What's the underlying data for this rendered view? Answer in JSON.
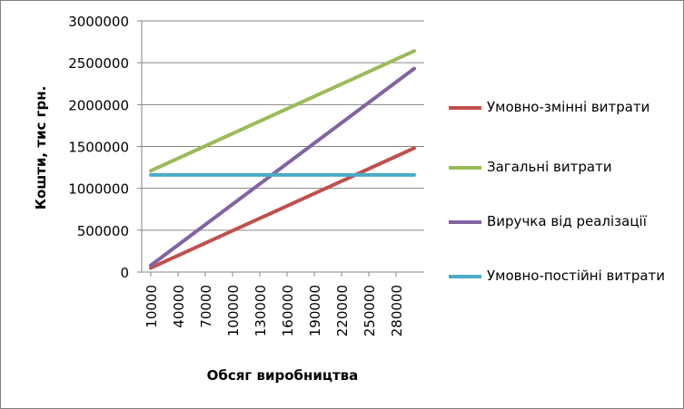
{
  "chart_data": {
    "type": "line",
    "title": "",
    "xlabel": "Обсяг виробництва",
    "ylabel": "Кошти, тис грн.",
    "ylim": [
      0,
      3000000
    ],
    "yticks": [
      "0",
      "500000",
      "1000000",
      "1500000",
      "2000000",
      "2500000",
      "3000000"
    ],
    "xlim": [
      10000,
      300000
    ],
    "xticks": [
      "10000",
      "40000",
      "70000",
      "100000",
      "130000",
      "160000",
      "190000",
      "220000",
      "250000",
      "280000"
    ],
    "grid": true,
    "legend_position": "right",
    "x": [
      10000,
      300000
    ],
    "series": [
      {
        "name": "Умовно-змінні витрати",
        "color": "#c0504d",
        "values": [
          50000,
          1480000
        ]
      },
      {
        "name": "Загальні витрати",
        "color": "#9bbb59",
        "values": [
          1210000,
          2640000
        ]
      },
      {
        "name": "Виручка від реалізації",
        "color": "#8064a2",
        "values": [
          80000,
          2430000
        ]
      },
      {
        "name": "Умовно-постійні витрати",
        "color": "#4bacc6",
        "values": [
          1160000,
          1160000
        ]
      }
    ]
  }
}
